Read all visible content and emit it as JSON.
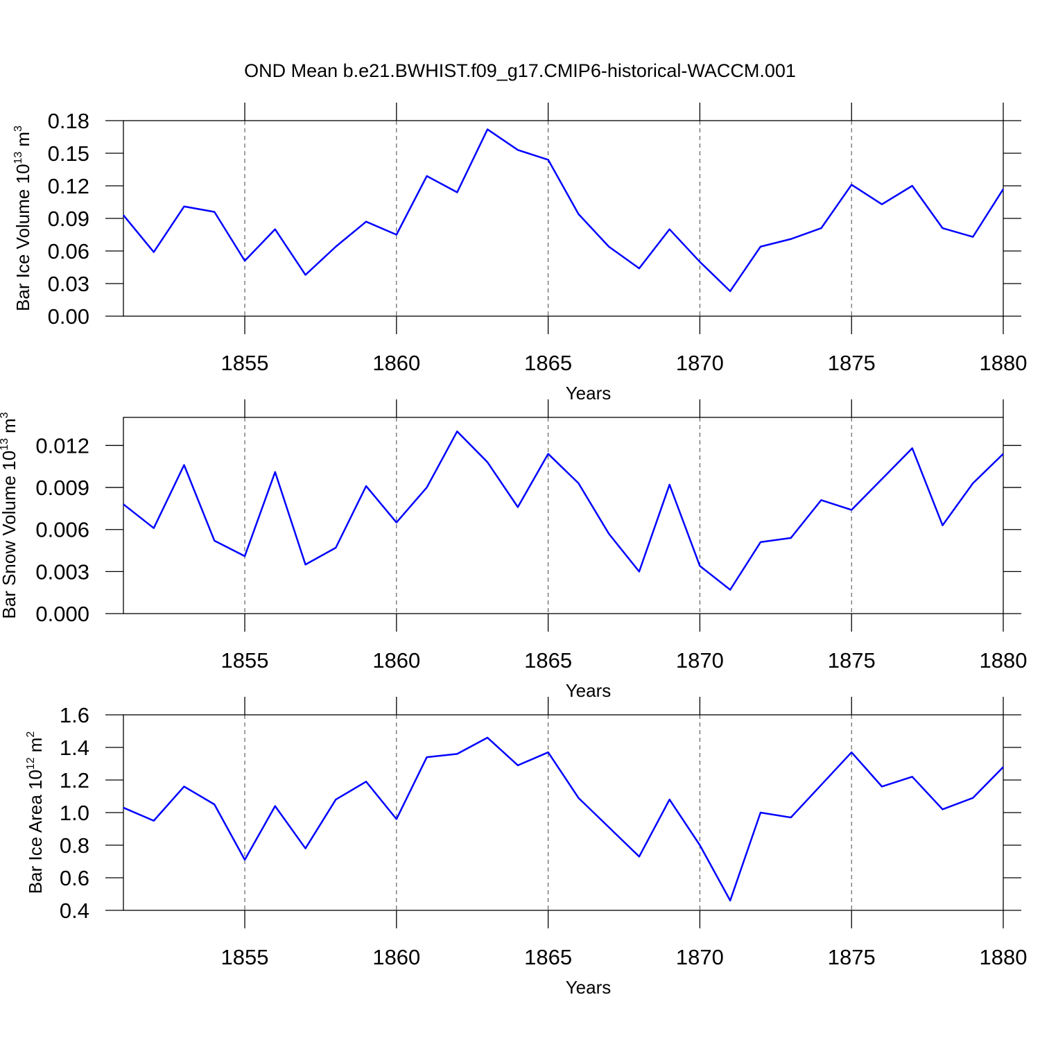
{
  "chart_data": [
    {
      "type": "line",
      "title": "OND Mean b.e21.BWHIST.f09_g17.CMIP6-historical-WACCM.001",
      "xlabel": "Years",
      "ylabel": "Bar Ice Volume 10",
      "ylabel_exponent": "13",
      "ylabel_unit": "m",
      "ylabel_unit_exponent": "3",
      "x": [
        1851,
        1852,
        1853,
        1854,
        1855,
        1856,
        1857,
        1858,
        1859,
        1860,
        1861,
        1862,
        1863,
        1864,
        1865,
        1866,
        1867,
        1868,
        1869,
        1870,
        1871,
        1872,
        1873,
        1874,
        1875,
        1876,
        1877,
        1878,
        1879,
        1880
      ],
      "series": [
        {
          "color": "#0000ff",
          "values": [
            0.093,
            0.059,
            0.101,
            0.096,
            0.051,
            0.08,
            0.038,
            0.064,
            0.087,
            0.075,
            0.129,
            0.114,
            0.172,
            0.153,
            0.144,
            0.094,
            0.064,
            0.044,
            0.08,
            0.05,
            0.023,
            0.064,
            0.071,
            0.081,
            0.121,
            0.103,
            0.12,
            0.081,
            0.073,
            0.117
          ]
        }
      ],
      "xlim": [
        1851,
        1880
      ],
      "xticks": [
        1855,
        1860,
        1865,
        1870,
        1875,
        1880
      ],
      "ylim": [
        0,
        0.18
      ],
      "yticks": [
        {
          "value": 0,
          "label": "0.00"
        },
        0.03,
        0.06,
        0.09,
        0.12,
        0.15,
        0.18
      ],
      "grid": true
    },
    {
      "type": "line",
      "xlabel": "Years",
      "ylabel": "Bar Snow Volume 10",
      "ylabel_exponent": "13",
      "ylabel_unit": "m",
      "ylabel_unit_exponent": "3",
      "x": [
        1851,
        1852,
        1853,
        1854,
        1855,
        1856,
        1857,
        1858,
        1859,
        1860,
        1861,
        1862,
        1863,
        1864,
        1865,
        1866,
        1867,
        1868,
        1869,
        1870,
        1871,
        1872,
        1873,
        1874,
        1875,
        1876,
        1877,
        1878,
        1879,
        1880
      ],
      "series": [
        {
          "color": "#0000ff",
          "values": [
            0.0078,
            0.0061,
            0.0106,
            0.0052,
            0.0041,
            0.0101,
            0.0035,
            0.0047,
            0.0091,
            0.0065,
            0.009,
            0.013,
            0.0108,
            0.0076,
            0.0114,
            0.0093,
            0.0057,
            0.003,
            0.0092,
            0.0034,
            0.0017,
            0.0051,
            0.0054,
            0.0081,
            0.0074,
            0.0096,
            0.0118,
            0.0063,
            0.0093,
            0.0114
          ]
        }
      ],
      "xlim": [
        1851,
        1880
      ],
      "xticks": [
        1855,
        1860,
        1865,
        1870,
        1875,
        1880
      ],
      "ylim": [
        0,
        0.014
      ],
      "yticks": [
        {
          "value": 0,
          "label": "0.000"
        },
        0.003,
        0.006,
        0.009,
        0.012
      ],
      "grid": true
    },
    {
      "type": "line",
      "xlabel": "Years",
      "ylabel": "Bar Ice Area 10",
      "ylabel_exponent": "12",
      "ylabel_unit": "m",
      "ylabel_unit_exponent": "2",
      "x": [
        1851,
        1852,
        1853,
        1854,
        1855,
        1856,
        1857,
        1858,
        1859,
        1860,
        1861,
        1862,
        1863,
        1864,
        1865,
        1866,
        1867,
        1868,
        1869,
        1870,
        1871,
        1872,
        1873,
        1874,
        1875,
        1876,
        1877,
        1878,
        1879,
        1880
      ],
      "series": [
        {
          "color": "#0000ff",
          "values": [
            1.03,
            0.95,
            1.16,
            1.05,
            0.71,
            1.04,
            0.78,
            1.08,
            1.19,
            0.96,
            1.34,
            1.36,
            1.46,
            1.29,
            1.37,
            1.09,
            0.91,
            0.73,
            1.08,
            0.8,
            0.46,
            1.0,
            0.97,
            1.17,
            1.37,
            1.16,
            1.22,
            1.02,
            1.09,
            1.28
          ]
        }
      ],
      "xlim": [
        1851,
        1880
      ],
      "xticks": [
        1855,
        1860,
        1865,
        1870,
        1875,
        1880
      ],
      "ylim": [
        0.4,
        1.6
      ],
      "yticks": [
        0.4,
        0.6,
        0.8,
        {
          "value": 1,
          "label": "1.0"
        },
        1.2,
        1.4,
        1.6
      ],
      "grid": true
    }
  ]
}
